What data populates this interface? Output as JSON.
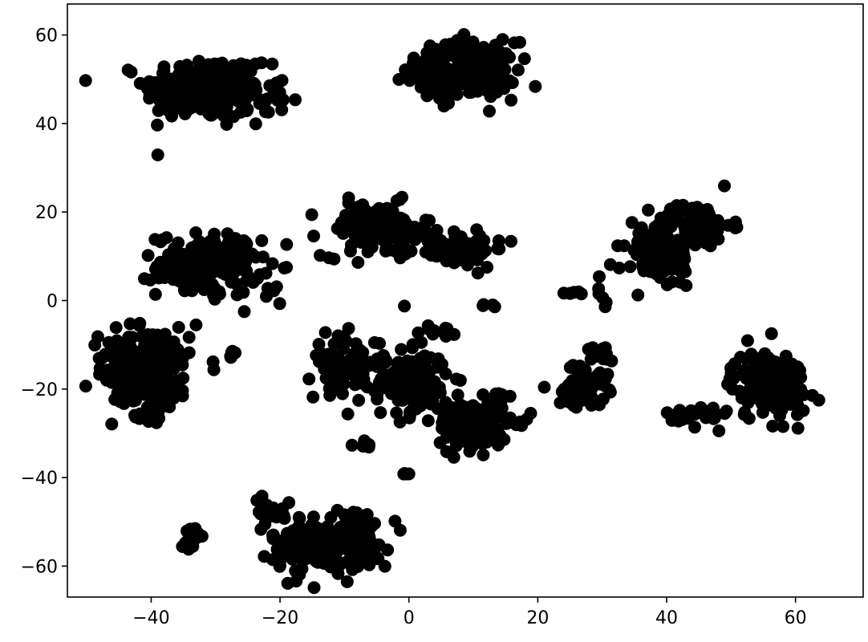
{
  "chart_data": {
    "type": "scatter",
    "title": "",
    "xlabel": "",
    "ylabel": "",
    "xlim": [
      -53,
      70.5
    ],
    "ylim": [
      -67,
      67
    ],
    "grid": false,
    "legend": "none",
    "marker_color": "#000000",
    "xticks": [
      -40,
      -20,
      0,
      20,
      40,
      60
    ],
    "yticks": [
      -60,
      -40,
      -20,
      0,
      20,
      40,
      60
    ],
    "clusters": [
      {
        "cx": -32,
        "cy": 48,
        "sx": 4.5,
        "sy": 3.6,
        "n": 220
      },
      {
        "cx": -26,
        "cy": 46,
        "sx": 3.5,
        "sy": 3.2,
        "n": 60
      },
      {
        "cx": 9,
        "cy": 52,
        "sx": 3.8,
        "sy": 3.2,
        "n": 200
      },
      {
        "cx": 3,
        "cy": 52,
        "sx": 2.2,
        "sy": 2.0,
        "n": 40
      },
      {
        "cx": -31,
        "cy": 8,
        "sx": 4.0,
        "sy": 3.5,
        "n": 170
      },
      {
        "cx": -5,
        "cy": 16,
        "sx": 4.2,
        "sy": 3.0,
        "n": 120
      },
      {
        "cx": 7,
        "cy": 12,
        "sx": 4.0,
        "sy": 2.2,
        "n": 80
      },
      {
        "cx": 44,
        "cy": 17,
        "sx": 3.0,
        "sy": 2.6,
        "n": 90
      },
      {
        "cx": 39,
        "cy": 9,
        "sx": 2.8,
        "sy": 3.0,
        "n": 70
      },
      {
        "cx": -40,
        "cy": -16,
        "sx": 3.0,
        "sy": 5.0,
        "n": 200
      },
      {
        "cx": -45,
        "cy": -13,
        "sx": 1.6,
        "sy": 3.0,
        "n": 40
      },
      {
        "cx": -10,
        "cy": -14,
        "sx": 2.8,
        "sy": 3.2,
        "n": 80
      },
      {
        "cx": 0,
        "cy": -19,
        "sx": 3.2,
        "sy": 3.6,
        "n": 140
      },
      {
        "cx": 10,
        "cy": -28,
        "sx": 2.6,
        "sy": 2.8,
        "n": 150
      },
      {
        "cx": 27,
        "cy": -19,
        "sx": 2.0,
        "sy": 2.4,
        "n": 60
      },
      {
        "cx": 56,
        "cy": -19,
        "sx": 3.0,
        "sy": 4.0,
        "n": 140
      },
      {
        "cx": 45,
        "cy": -26,
        "sx": 2.4,
        "sy": 1.3,
        "n": 30
      },
      {
        "cx": -15,
        "cy": -55,
        "sx": 3.2,
        "sy": 3.4,
        "n": 120
      },
      {
        "cx": -8,
        "cy": -54,
        "sx": 2.4,
        "sy": 3.6,
        "n": 100
      },
      {
        "cx": -22,
        "cy": -48,
        "sx": 1.8,
        "sy": 1.6,
        "n": 20
      },
      {
        "cx": -33,
        "cy": -53.5,
        "sx": 0.8,
        "sy": 1.2,
        "n": 14
      },
      {
        "cx": 4,
        "cy": -7,
        "sx": 1.6,
        "sy": 0.6,
        "n": 10
      },
      {
        "cx": 30,
        "cy": -11.5,
        "sx": 1.4,
        "sy": 1.0,
        "n": 12
      },
      {
        "cx": 30,
        "cy": 2.5,
        "sx": 0.4,
        "sy": 1.5,
        "n": 6
      },
      {
        "cx": 25.5,
        "cy": 1.5,
        "sx": 1.2,
        "sy": 0.4,
        "n": 6
      },
      {
        "cx": 13,
        "cy": -1.2,
        "sx": 0.9,
        "sy": 0.2,
        "n": 4
      },
      {
        "cx": -0.5,
        "cy": -39,
        "sx": 0.5,
        "sy": 0.3,
        "n": 4
      },
      {
        "cx": -6.5,
        "cy": -32.5,
        "sx": 1.0,
        "sy": 0.5,
        "n": 6
      },
      {
        "cx": 14,
        "cy": -21.5,
        "sx": 1.0,
        "sy": 0.4,
        "n": 4
      },
      {
        "cx": 18,
        "cy": -27,
        "sx": 1.4,
        "sy": 1.0,
        "n": 5
      },
      {
        "cx": -27.5,
        "cy": -12,
        "sx": 0.8,
        "sy": 0.8,
        "n": 6
      },
      {
        "cx": -21,
        "cy": 2.5,
        "sx": 1.0,
        "sy": 1.6,
        "n": 6
      },
      {
        "cx": 35.5,
        "cy": 1.5,
        "sx": 0.2,
        "sy": 0.2,
        "n": 1
      },
      {
        "cx": -30.5,
        "cy": -15.5,
        "sx": 0.2,
        "sy": 0.2,
        "n": 1
      },
      {
        "cx": -0.8,
        "cy": -1,
        "sx": 0.2,
        "sy": 0.2,
        "n": 1
      }
    ]
  }
}
